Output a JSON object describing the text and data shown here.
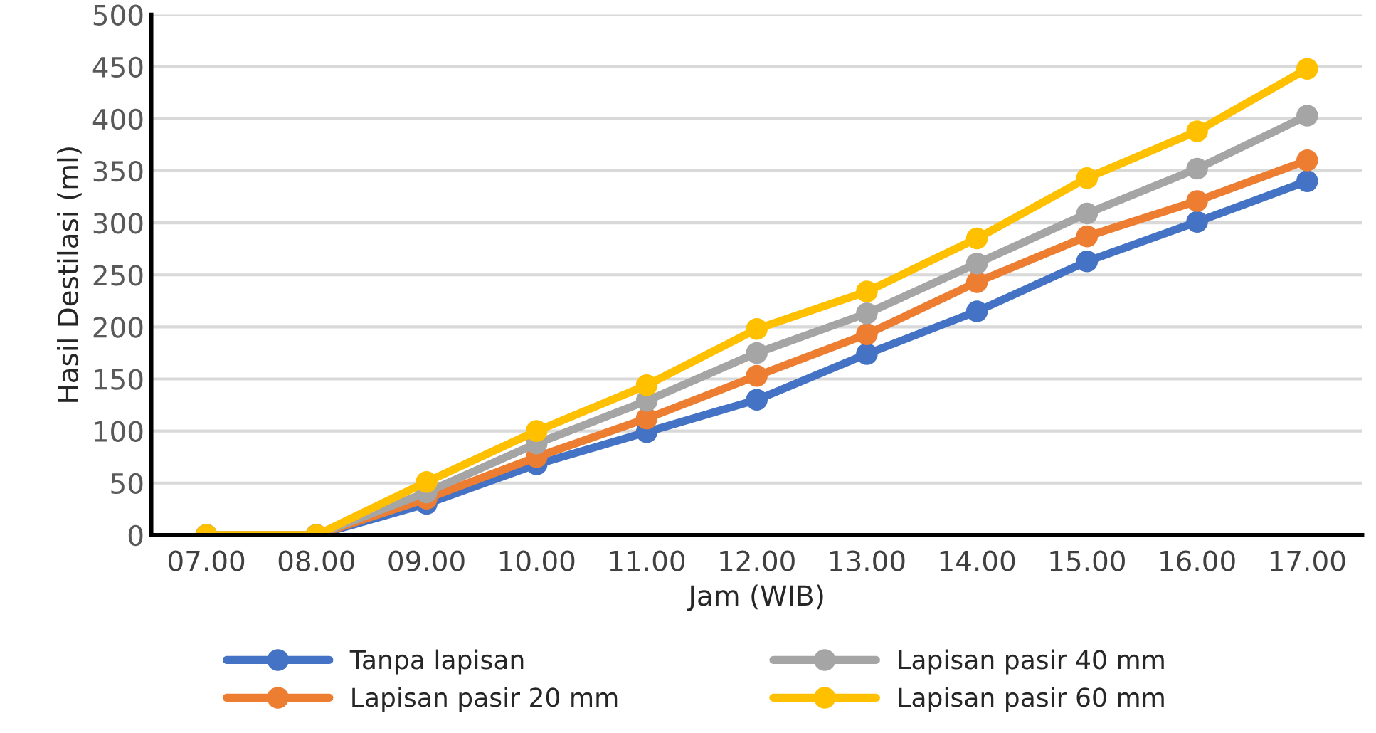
{
  "chart_data": {
    "type": "line",
    "xlabel": "Jam (WIB)",
    "ylabel": "Hasil Destilasi (ml)",
    "categories": [
      "07.00",
      "08.00",
      "09.00",
      "10.00",
      "11.00",
      "12.00",
      "13.00",
      "14.00",
      "15.00",
      "16.00",
      "17.00"
    ],
    "series": [
      {
        "name": "Tanpa lapisan",
        "color": "#4472c4",
        "values": [
          0,
          0,
          30,
          68,
          99,
          130,
          174,
          215,
          263,
          301,
          340
        ]
      },
      {
        "name": "Lapisan pasir 20 mm",
        "color": "#ed7d31",
        "values": [
          0,
          0,
          35,
          75,
          112,
          153,
          193,
          243,
          287,
          321,
          360
        ]
      },
      {
        "name": "Lapisan pasir 40 mm",
        "color": "#a5a5a5",
        "values": [
          0,
          0,
          41,
          88,
          129,
          175,
          213,
          261,
          309,
          352,
          403
        ]
      },
      {
        "name": "Lapisan pasir 60 mm",
        "color": "#ffc000",
        "values": [
          0,
          0,
          51,
          100,
          144,
          198,
          234,
          285,
          343,
          388,
          448
        ]
      }
    ],
    "ylim": [
      0,
      500
    ],
    "yticks": [
      0,
      50,
      100,
      150,
      200,
      250,
      300,
      350,
      400,
      450,
      500
    ],
    "grid": "y",
    "legend": "bottom",
    "marker": "circle",
    "line_style": "solid"
  }
}
